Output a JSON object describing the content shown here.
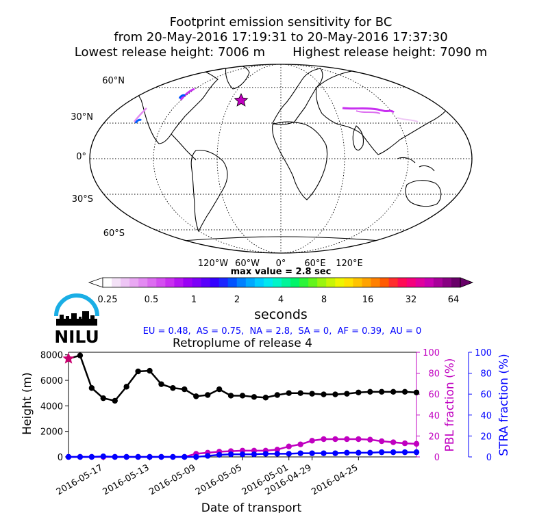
{
  "map": {
    "title_lines": [
      "Footprint emission sensitivity for BC",
      "from 20-May-2016 17:19:31 to 20-May-2016 17:37:30",
      "Lowest release height: 7006 m       Highest release height: 7090 m"
    ],
    "lat_labels": [
      "60°N",
      "30°N",
      "0°",
      "30°S",
      "60°S"
    ],
    "lon_labels": [
      "120°W",
      "60°W",
      "0°",
      "60°E",
      "120°E"
    ],
    "max_value_label": "max value = 2.8 sec"
  },
  "colorbar": {
    "tick_labels": [
      "0.25",
      "0.5",
      "1",
      "2",
      "4",
      "8",
      "16",
      "32",
      "64"
    ],
    "unit_label": "seconds",
    "colors": [
      "#ffffff",
      "#f4e2f7",
      "#eec5f5",
      "#e9a8f3",
      "#e38af2",
      "#dc6cf0",
      "#d44ef0",
      "#c92ff0",
      "#b414f2",
      "#9a00f5",
      "#7d00f8",
      "#5a00fb",
      "#3300ff",
      "#1b25ff",
      "#0052ff",
      "#0080ff",
      "#00a8ff",
      "#00ccff",
      "#00e8f0",
      "#00f5c8",
      "#00f59a",
      "#00f56a",
      "#2cf53a",
      "#62f51c",
      "#9af50e",
      "#c8f505",
      "#eef500",
      "#ffe100",
      "#ffc300",
      "#ffa300",
      "#ff8000",
      "#ff5a00",
      "#ff2d2d",
      "#ff0a55",
      "#f5007d",
      "#e0009e",
      "#c800b0",
      "#a8009a",
      "#880082",
      "#680068"
    ]
  },
  "logo": {
    "text": "NILU"
  },
  "fractions_line": "EU = 0.48,  AS = 0.75,  NA = 2.8,  SA = 0,  AF = 0.39,  AU = 0",
  "chart_data": {
    "type": "line",
    "title": "Retroplume of release 4",
    "xlabel": "Date of transport",
    "ylabel": "Height (m)",
    "y2label": "PBL fraction (%)",
    "y3label": "STRA fraction (%)",
    "ylim": [
      0,
      8200
    ],
    "y2lim": [
      0,
      100
    ],
    "y3lim": [
      0,
      100
    ],
    "yticks": [
      0,
      2000,
      4000,
      6000,
      8000
    ],
    "y2ticks": [
      0,
      20,
      40,
      60,
      80,
      100
    ],
    "y3ticks": [
      0,
      20,
      40,
      60,
      80,
      100
    ],
    "xlim": [
      "2016-05-20",
      "2016-04-20"
    ],
    "x_tick_labels": [
      "2016-05-17",
      "2016-05-13",
      "2016-05-09",
      "2016-05-05",
      "2016-05-01",
      "2016-04-29",
      "2016-04-25"
    ],
    "x": [
      "2016-05-20",
      "2016-05-19",
      "2016-05-18",
      "2016-05-17",
      "2016-05-16",
      "2016-05-15",
      "2016-05-14",
      "2016-05-13",
      "2016-05-12",
      "2016-05-11",
      "2016-05-10",
      "2016-05-09",
      "2016-05-08",
      "2016-05-07",
      "2016-05-06",
      "2016-05-05",
      "2016-05-04",
      "2016-05-03",
      "2016-05-02",
      "2016-05-01",
      "2016-04-30",
      "2016-04-29",
      "2016-04-28",
      "2016-04-27",
      "2016-04-26",
      "2016-04-25",
      "2016-04-24",
      "2016-04-23",
      "2016-04-22",
      "2016-04-21",
      "2016-04-20"
    ],
    "series": [
      {
        "role": "height",
        "color": "#000000",
        "values": [
          7700,
          7950,
          5400,
          4600,
          4400,
          5500,
          6700,
          6750,
          5700,
          5400,
          5300,
          4750,
          4850,
          5300,
          4800,
          4800,
          4700,
          4650,
          4850,
          5000,
          5000,
          4950,
          4900,
          4900,
          4950,
          5050,
          5100,
          5100,
          5100,
          5100,
          5050
        ]
      },
      {
        "role": "pbl",
        "color": "#c000c0",
        "values": [
          0,
          0,
          0,
          0,
          0,
          0,
          0,
          0,
          0,
          0,
          0,
          3,
          4,
          5,
          5.5,
          6,
          6,
          6,
          7,
          10,
          12,
          15.5,
          17,
          17,
          17,
          17,
          16.5,
          15,
          14,
          13,
          12.5
        ]
      },
      {
        "role": "stra",
        "color": "#0000ff",
        "values": [
          0,
          0,
          0,
          0.5,
          0,
          0,
          0,
          0,
          0,
          0,
          0,
          0,
          1,
          2,
          2.5,
          2.5,
          2.5,
          3,
          3,
          3,
          3.5,
          3.5,
          3.5,
          3.5,
          4,
          4,
          4,
          4.5,
          4.5,
          4.5,
          4.5
        ]
      }
    ]
  }
}
